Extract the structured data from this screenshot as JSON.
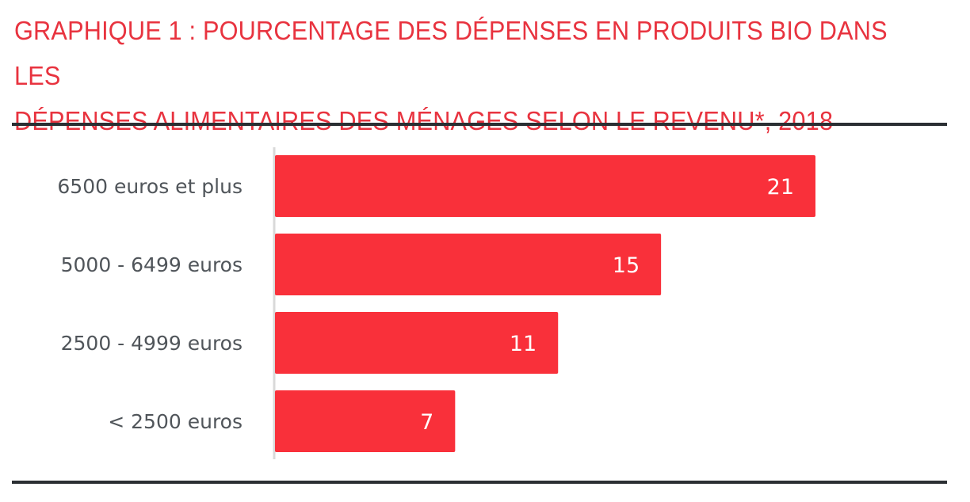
{
  "header": {
    "title_line1": "GRAPHIQUE 1 : POURCENTAGE DES DÉPENSES EN PRODUITS BIO DANS LES",
    "title_line2": "DÉPENSES ALIMENTAIRES DES MÉNAGES SELON LE REVENU*, 2018"
  },
  "colors": {
    "bar": "#f9303a",
    "title": "#e8333f",
    "label": "#50555a",
    "rule": "#2b2f33",
    "axis": "#d9d9d9"
  },
  "chart_data": {
    "type": "bar",
    "orientation": "horizontal",
    "title": "GRAPHIQUE 1 : POURCENTAGE DES DÉPENSES EN PRODUITS BIO DANS LES DÉPENSES ALIMENTAIRES DES MÉNAGES SELON LE REVENU*, 2018",
    "categories": [
      "6500 euros et plus",
      "5000 - 6499 euros",
      "2500 - 4999 euros",
      "< 2500 euros"
    ],
    "values": [
      21,
      15,
      11,
      7
    ],
    "data_labels": [
      "21",
      "15",
      "11",
      "7"
    ],
    "xlabel": "",
    "ylabel": "",
    "xlim": [
      0,
      21
    ],
    "grid": false,
    "legend": "none"
  }
}
